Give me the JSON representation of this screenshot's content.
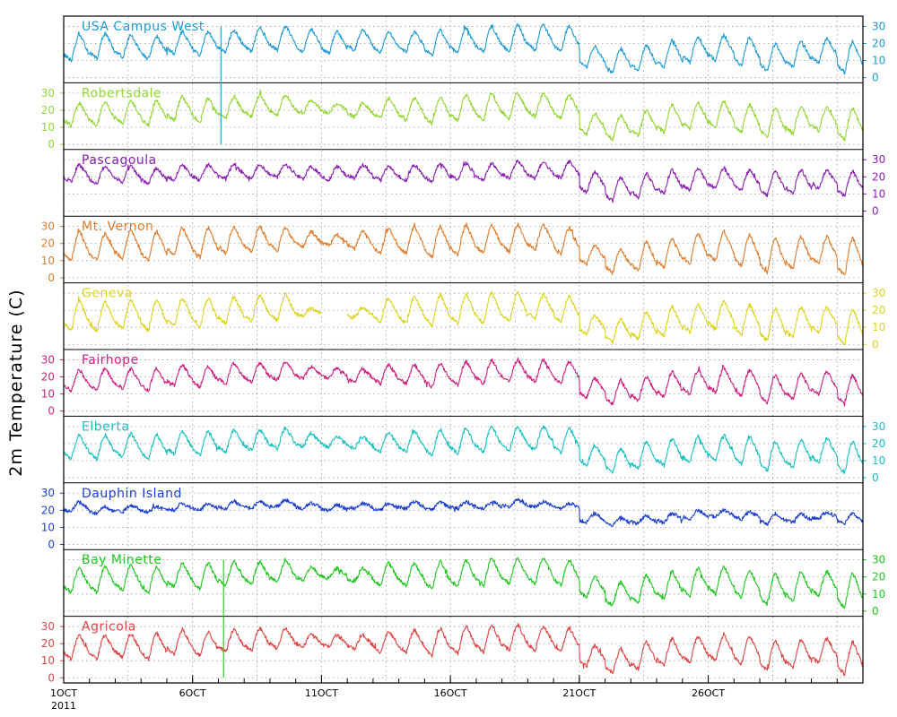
{
  "chart_data": {
    "type": "line",
    "ylabel": "2m Temperature (C)",
    "x_ticks": [
      "1OCT",
      "6OCT",
      "11OCT",
      "16OCT",
      "21OCT",
      "26OCT"
    ],
    "x_year": "2011",
    "x_range_days": [
      1,
      32
    ],
    "ylim": [
      -3,
      36
    ],
    "y_ticks": [
      0,
      10,
      20,
      30
    ],
    "grid": "dotted",
    "panels": [
      {
        "name": "USA Campus West",
        "color": "#1f9bd7",
        "axis_side": "right",
        "daily": [
          [
            10,
            25
          ],
          [
            11,
            26
          ],
          [
            12,
            25
          ],
          [
            11,
            24
          ],
          [
            14,
            27
          ],
          [
            13,
            27
          ],
          [
            15,
            28
          ],
          [
            15,
            29
          ],
          [
            16,
            30
          ],
          [
            15,
            28
          ],
          [
            14,
            27
          ],
          [
            16,
            28
          ],
          [
            15,
            27
          ],
          [
            15,
            27
          ],
          [
            13,
            28
          ],
          [
            14,
            29
          ],
          [
            15,
            30
          ],
          [
            15,
            31
          ],
          [
            16,
            31
          ],
          [
            15,
            30
          ],
          [
            6,
            18
          ],
          [
            3,
            17
          ],
          [
            4,
            19
          ],
          [
            6,
            22
          ],
          [
            9,
            24
          ],
          [
            10,
            25
          ],
          [
            7,
            23
          ],
          [
            4,
            20
          ],
          [
            6,
            22
          ],
          [
            9,
            23
          ],
          [
            3,
            21
          ],
          [
            9,
            20
          ]
        ]
      },
      {
        "name": "Robertsdale",
        "color": "#92d630",
        "axis_side": "left",
        "daily": [
          [
            11,
            24
          ],
          [
            11,
            25
          ],
          [
            12,
            26
          ],
          [
            11,
            26
          ],
          [
            14,
            28
          ],
          [
            13,
            27
          ],
          [
            15,
            28
          ],
          [
            16,
            29
          ],
          [
            17,
            29
          ],
          [
            18,
            26
          ],
          [
            18,
            24
          ],
          [
            16,
            24
          ],
          [
            15,
            27
          ],
          [
            14,
            27
          ],
          [
            12,
            28
          ],
          [
            14,
            29
          ],
          [
            14,
            30
          ],
          [
            15,
            30
          ],
          [
            16,
            30
          ],
          [
            15,
            29
          ],
          [
            6,
            18
          ],
          [
            3,
            17
          ],
          [
            5,
            20
          ],
          [
            7,
            23
          ],
          [
            9,
            24
          ],
          [
            10,
            25
          ],
          [
            7,
            23
          ],
          [
            4,
            21
          ],
          [
            6,
            22
          ],
          [
            8,
            22
          ],
          [
            3,
            21
          ],
          [
            8,
            21
          ]
        ]
      },
      {
        "name": "Pascagoula",
        "color": "#8b1fb4",
        "axis_side": "right",
        "daily": [
          [
            17,
            27
          ],
          [
            16,
            26
          ],
          [
            17,
            26
          ],
          [
            16,
            25
          ],
          [
            18,
            27
          ],
          [
            18,
            27
          ],
          [
            19,
            27
          ],
          [
            19,
            27
          ],
          [
            20,
            27
          ],
          [
            19,
            26
          ],
          [
            18,
            26
          ],
          [
            19,
            27
          ],
          [
            18,
            26
          ],
          [
            18,
            27
          ],
          [
            17,
            28
          ],
          [
            18,
            28
          ],
          [
            18,
            28
          ],
          [
            19,
            29
          ],
          [
            19,
            29
          ],
          [
            19,
            29
          ],
          [
            11,
            23
          ],
          [
            6,
            20
          ],
          [
            8,
            22
          ],
          [
            10,
            24
          ],
          [
            12,
            25
          ],
          [
            13,
            25
          ],
          [
            12,
            24
          ],
          [
            9,
            23
          ],
          [
            10,
            24
          ],
          [
            13,
            24
          ],
          [
            9,
            23
          ],
          [
            13,
            23
          ]
        ]
      },
      {
        "name": "Mt. Vernon",
        "color": "#e07b2a",
        "axis_side": "left",
        "daily": [
          [
            10,
            27
          ],
          [
            10,
            26
          ],
          [
            11,
            28
          ],
          [
            10,
            27
          ],
          [
            13,
            29
          ],
          [
            12,
            29
          ],
          [
            14,
            30
          ],
          [
            15,
            30
          ],
          [
            16,
            29
          ],
          [
            18,
            27
          ],
          [
            19,
            25
          ],
          [
            17,
            27
          ],
          [
            14,
            29
          ],
          [
            14,
            30
          ],
          [
            12,
            30
          ],
          [
            13,
            31
          ],
          [
            14,
            31
          ],
          [
            15,
            31
          ],
          [
            16,
            31
          ],
          [
            14,
            29
          ],
          [
            8,
            19
          ],
          [
            3,
            17
          ],
          [
            4,
            21
          ],
          [
            6,
            23
          ],
          [
            8,
            26
          ],
          [
            10,
            27
          ],
          [
            7,
            25
          ],
          [
            3,
            23
          ],
          [
            5,
            24
          ],
          [
            8,
            24
          ],
          [
            1,
            23
          ],
          [
            6,
            23
          ]
        ]
      },
      {
        "name": "Geneva",
        "color": "#dcd41c",
        "axis_side": "right",
        "daily": [
          [
            8,
            26
          ],
          [
            8,
            25
          ],
          [
            9,
            26
          ],
          [
            8,
            26
          ],
          [
            11,
            27
          ],
          [
            10,
            27
          ],
          [
            12,
            28
          ],
          [
            13,
            29
          ],
          [
            14,
            29
          ],
          [
            17,
            21
          ],
          [
            null,
            null
          ],
          [
            16,
            21
          ],
          [
            13,
            27
          ],
          [
            12,
            28
          ],
          [
            11,
            29
          ],
          [
            12,
            29
          ],
          [
            12,
            30
          ],
          [
            13,
            30
          ],
          [
            15,
            29
          ],
          [
            13,
            28
          ],
          [
            6,
            17
          ],
          [
            1,
            15
          ],
          [
            3,
            19
          ],
          [
            5,
            22
          ],
          [
            7,
            24
          ],
          [
            9,
            25
          ],
          [
            6,
            23
          ],
          [
            2,
            21
          ],
          [
            4,
            22
          ],
          [
            7,
            22
          ],
          [
            0,
            21
          ],
          [
            5,
            21
          ]
        ]
      },
      {
        "name": "Fairhope",
        "color": "#d11f80",
        "axis_side": "left",
        "daily": [
          [
            12,
            24
          ],
          [
            12,
            25
          ],
          [
            13,
            25
          ],
          [
            12,
            25
          ],
          [
            15,
            27
          ],
          [
            14,
            26
          ],
          [
            16,
            28
          ],
          [
            17,
            28
          ],
          [
            18,
            29
          ],
          [
            19,
            26
          ],
          [
            19,
            25
          ],
          [
            17,
            25
          ],
          [
            16,
            27
          ],
          [
            16,
            27
          ],
          [
            14,
            28
          ],
          [
            15,
            29
          ],
          [
            16,
            30
          ],
          [
            17,
            30
          ],
          [
            17,
            30
          ],
          [
            16,
            29
          ],
          [
            8,
            19
          ],
          [
            4,
            18
          ],
          [
            6,
            20
          ],
          [
            8,
            23
          ],
          [
            10,
            24
          ],
          [
            11,
            25
          ],
          [
            9,
            24
          ],
          [
            5,
            21
          ],
          [
            7,
            22
          ],
          [
            10,
            23
          ],
          [
            4,
            21
          ],
          [
            9,
            21
          ]
        ]
      },
      {
        "name": "Elberta",
        "color": "#19c0c0",
        "axis_side": "right",
        "daily": [
          [
            11,
            25
          ],
          [
            11,
            25
          ],
          [
            12,
            26
          ],
          [
            11,
            25
          ],
          [
            14,
            27
          ],
          [
            13,
            27
          ],
          [
            15,
            28
          ],
          [
            16,
            28
          ],
          [
            17,
            29
          ],
          [
            18,
            26
          ],
          [
            18,
            24
          ],
          [
            17,
            24
          ],
          [
            15,
            27
          ],
          [
            15,
            27
          ],
          [
            13,
            28
          ],
          [
            14,
            29
          ],
          [
            15,
            30
          ],
          [
            16,
            30
          ],
          [
            16,
            30
          ],
          [
            15,
            29
          ],
          [
            7,
            19
          ],
          [
            3,
            17
          ],
          [
            5,
            21
          ],
          [
            7,
            23
          ],
          [
            9,
            24
          ],
          [
            10,
            25
          ],
          [
            8,
            24
          ],
          [
            4,
            21
          ],
          [
            6,
            22
          ],
          [
            9,
            23
          ],
          [
            3,
            21
          ],
          [
            8,
            21
          ]
        ]
      },
      {
        "name": "Dauphin Island",
        "color": "#1c3fd0",
        "axis_side": "left",
        "daily": [
          [
            19,
            25
          ],
          [
            18,
            22
          ],
          [
            19,
            23
          ],
          [
            19,
            22
          ],
          [
            20,
            24
          ],
          [
            20,
            24
          ],
          [
            21,
            25
          ],
          [
            21,
            25
          ],
          [
            22,
            26
          ],
          [
            21,
            24
          ],
          [
            20,
            23
          ],
          [
            21,
            24
          ],
          [
            20,
            24
          ],
          [
            21,
            25
          ],
          [
            20,
            25
          ],
          [
            21,
            25
          ],
          [
            21,
            25
          ],
          [
            22,
            26
          ],
          [
            22,
            25
          ],
          [
            21,
            24
          ],
          [
            13,
            18
          ],
          [
            11,
            16
          ],
          [
            12,
            17
          ],
          [
            13,
            18
          ],
          [
            15,
            20
          ],
          [
            16,
            20
          ],
          [
            15,
            19
          ],
          [
            12,
            18
          ],
          [
            13,
            18
          ],
          [
            15,
            19
          ],
          [
            12,
            18
          ],
          [
            15,
            19
          ]
        ]
      },
      {
        "name": "Bay Minette",
        "color": "#1ec71e",
        "axis_side": "right",
        "daily": [
          [
            11,
            25
          ],
          [
            11,
            26
          ],
          [
            12,
            27
          ],
          [
            11,
            26
          ],
          [
            14,
            28
          ],
          [
            13,
            28
          ],
          [
            15,
            29
          ],
          [
            16,
            29
          ],
          [
            17,
            29
          ],
          [
            18,
            26
          ],
          [
            19,
            25
          ],
          [
            17,
            25
          ],
          [
            15,
            28
          ],
          [
            15,
            28
          ],
          [
            13,
            29
          ],
          [
            14,
            30
          ],
          [
            15,
            31
          ],
          [
            16,
            31
          ],
          [
            16,
            31
          ],
          [
            15,
            30
          ],
          [
            8,
            20
          ],
          [
            3,
            17
          ],
          [
            5,
            21
          ],
          [
            7,
            23
          ],
          [
            9,
            25
          ],
          [
            10,
            26
          ],
          [
            8,
            24
          ],
          [
            4,
            22
          ],
          [
            6,
            23
          ],
          [
            9,
            23
          ],
          [
            2,
            22
          ],
          [
            8,
            22
          ]
        ]
      },
      {
        "name": "Agricola",
        "color": "#e24343",
        "axis_side": "left",
        "daily": [
          [
            11,
            25
          ],
          [
            11,
            25
          ],
          [
            12,
            26
          ],
          [
            11,
            26
          ],
          [
            14,
            28
          ],
          [
            13,
            27
          ],
          [
            15,
            28
          ],
          [
            16,
            29
          ],
          [
            17,
            29
          ],
          [
            18,
            26
          ],
          [
            18,
            25
          ],
          [
            17,
            25
          ],
          [
            15,
            27
          ],
          [
            15,
            28
          ],
          [
            13,
            29
          ],
          [
            14,
            30
          ],
          [
            15,
            31
          ],
          [
            16,
            31
          ],
          [
            16,
            30
          ],
          [
            15,
            29
          ],
          [
            7,
            19
          ],
          [
            3,
            17
          ],
          [
            5,
            21
          ],
          [
            7,
            23
          ],
          [
            9,
            24
          ],
          [
            10,
            25
          ],
          [
            8,
            24
          ],
          [
            4,
            22
          ],
          [
            6,
            22
          ],
          [
            9,
            23
          ],
          [
            2,
            21
          ],
          [
            8,
            21
          ]
        ]
      }
    ],
    "spikes": [
      {
        "panel": 0,
        "extends_to_panel": 1,
        "day": 7.1,
        "color": "#1f9bd7"
      },
      {
        "panel": 8,
        "extends_to_panel": 9,
        "day": 7.2,
        "color": "#1ec71e"
      }
    ]
  }
}
